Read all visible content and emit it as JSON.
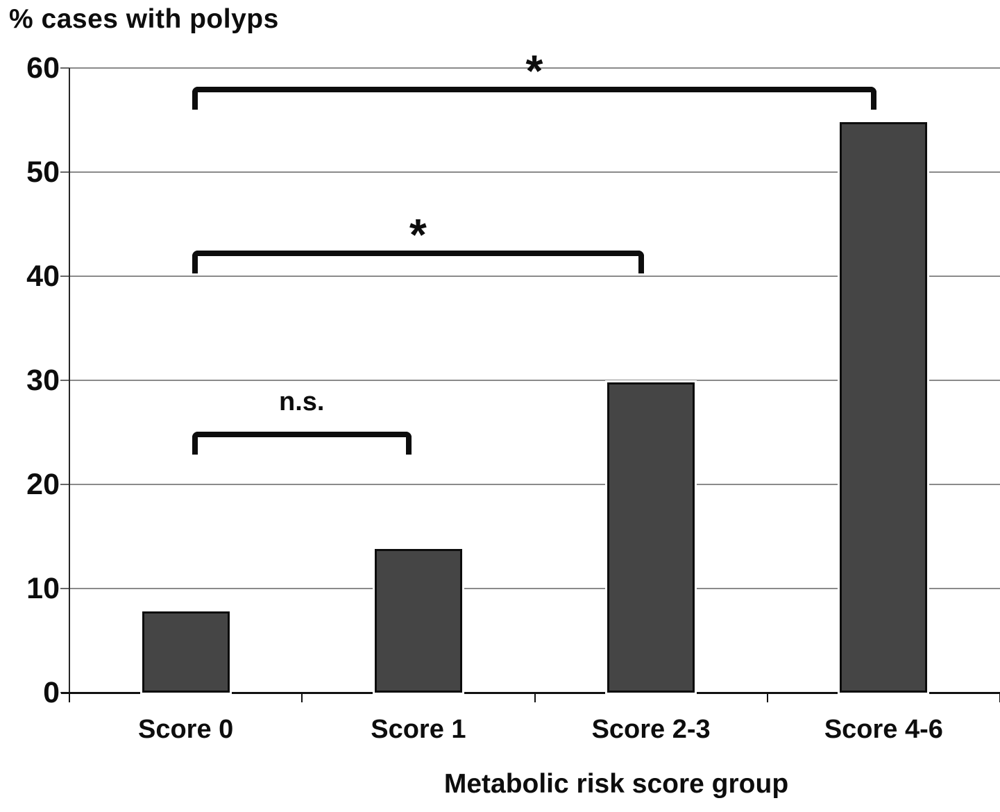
{
  "page": {
    "title": "% cases with polyps",
    "xaxis_title": "Metabolic risk score group"
  },
  "chart_data": {
    "type": "bar",
    "title": "% cases with polyps",
    "xlabel": "Metabolic risk score group",
    "ylabel": "% cases with polyps",
    "categories": [
      "Score 0",
      "Score 1",
      "Score 2-3",
      "Score 4-6"
    ],
    "values": [
      7.8,
      13.8,
      29.8,
      54.8
    ],
    "ylim": [
      0,
      60
    ],
    "yticks": [
      0,
      10,
      20,
      30,
      40,
      50,
      60
    ],
    "grid": true,
    "legend": false,
    "bar_color": "#454545",
    "bar_border_color": "#0d0d0d",
    "gridline_color": "#8a8a8a",
    "axis_color": "#1a1a1a",
    "annotations": [
      {
        "type": "significance-bracket",
        "from": "Score 0",
        "to": "Score 1",
        "label": "n.s.",
        "y": 25.1
      },
      {
        "type": "significance-bracket",
        "from": "Score 0",
        "to": "Score 2-3",
        "label": "*",
        "y": 42.5
      },
      {
        "type": "significance-bracket",
        "from": "Score 0",
        "to": "Score 4-6",
        "label": "*",
        "y": 58.2
      }
    ]
  }
}
